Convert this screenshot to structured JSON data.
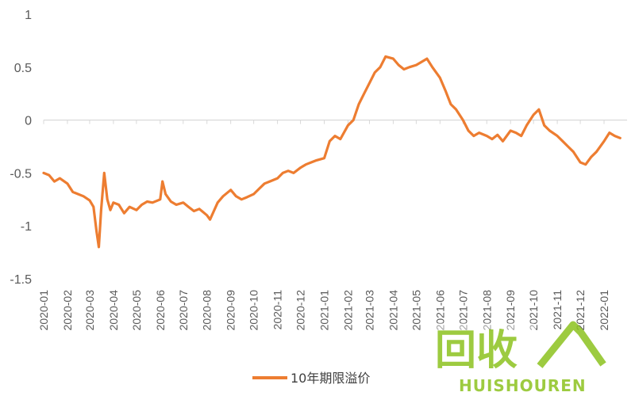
{
  "chart_data": {
    "type": "line",
    "ylim": [
      -1.5,
      1
    ],
    "y_ticks": [
      "1",
      "0.5",
      "0",
      "-0.5",
      "-1",
      "-1.5"
    ],
    "x_ticks": [
      "2020-01",
      "2020-02",
      "2020-03",
      "2020-04",
      "2020-05",
      "2020-06",
      "2020-07",
      "2020-08",
      "2020-09",
      "2020-10",
      "2020-11",
      "2020-12",
      "2021-01",
      "2021-02",
      "2021-03",
      "2021-04",
      "2021-05",
      "2021-06",
      "2021-07",
      "2021-08",
      "2021-09",
      "2021-10",
      "2021-11",
      "2021-12",
      "2022-01"
    ],
    "legend_position": "bottom",
    "colors": {
      "line": "#ED7D31",
      "axis": "#D9D9D9"
    },
    "series": [
      {
        "name": "10年期限溢价",
        "x": [
          "2020-01-01",
          "2020-01-08",
          "2020-01-15",
          "2020-01-22",
          "2020-02-01",
          "2020-02-08",
          "2020-02-15",
          "2020-02-22",
          "2020-03-01",
          "2020-03-06",
          "2020-03-10",
          "2020-03-13",
          "2020-03-16",
          "2020-03-20",
          "2020-03-24",
          "2020-03-28",
          "2020-04-01",
          "2020-04-08",
          "2020-04-15",
          "2020-04-22",
          "2020-05-01",
          "2020-05-08",
          "2020-05-15",
          "2020-05-22",
          "2020-06-01",
          "2020-06-04",
          "2020-06-08",
          "2020-06-15",
          "2020-06-22",
          "2020-07-01",
          "2020-07-08",
          "2020-07-15",
          "2020-07-22",
          "2020-08-01",
          "2020-08-05",
          "2020-08-10",
          "2020-08-15",
          "2020-08-22",
          "2020-09-01",
          "2020-09-08",
          "2020-09-15",
          "2020-09-22",
          "2020-10-01",
          "2020-10-08",
          "2020-10-15",
          "2020-10-22",
          "2020-11-01",
          "2020-11-08",
          "2020-11-15",
          "2020-11-22",
          "2020-12-01",
          "2020-12-08",
          "2020-12-15",
          "2020-12-22",
          "2021-01-01",
          "2021-01-08",
          "2021-01-15",
          "2021-01-22",
          "2021-02-01",
          "2021-02-08",
          "2021-02-15",
          "2021-02-22",
          "2021-03-01",
          "2021-03-08",
          "2021-03-15",
          "2021-03-22",
          "2021-04-01",
          "2021-04-08",
          "2021-04-15",
          "2021-04-22",
          "2021-05-01",
          "2021-05-08",
          "2021-05-15",
          "2021-05-22",
          "2021-06-01",
          "2021-06-08",
          "2021-06-15",
          "2021-06-22",
          "2021-07-01",
          "2021-07-08",
          "2021-07-15",
          "2021-07-22",
          "2021-08-01",
          "2021-08-08",
          "2021-08-15",
          "2021-08-22",
          "2021-09-01",
          "2021-09-08",
          "2021-09-15",
          "2021-09-22",
          "2021-10-01",
          "2021-10-08",
          "2021-10-15",
          "2021-10-22",
          "2021-11-01",
          "2021-11-08",
          "2021-11-15",
          "2021-11-22",
          "2021-12-01",
          "2021-12-08",
          "2021-12-15",
          "2021-12-22",
          "2022-01-01",
          "2022-01-08",
          "2022-01-15",
          "2022-01-22"
        ],
        "values": [
          -0.5,
          -0.52,
          -0.58,
          -0.55,
          -0.6,
          -0.68,
          -0.7,
          -0.72,
          -0.76,
          -0.82,
          -1.05,
          -1.2,
          -0.85,
          -0.5,
          -0.75,
          -0.85,
          -0.78,
          -0.8,
          -0.88,
          -0.82,
          -0.85,
          -0.8,
          -0.77,
          -0.78,
          -0.75,
          -0.58,
          -0.7,
          -0.77,
          -0.8,
          -0.78,
          -0.82,
          -0.86,
          -0.84,
          -0.9,
          -0.94,
          -0.86,
          -0.78,
          -0.72,
          -0.66,
          -0.72,
          -0.75,
          -0.73,
          -0.7,
          -0.65,
          -0.6,
          -0.58,
          -0.55,
          -0.5,
          -0.48,
          -0.5,
          -0.45,
          -0.42,
          -0.4,
          -0.38,
          -0.36,
          -0.2,
          -0.15,
          -0.18,
          -0.05,
          0.0,
          0.15,
          0.25,
          0.35,
          0.45,
          0.5,
          0.6,
          0.58,
          0.52,
          0.48,
          0.5,
          0.52,
          0.55,
          0.58,
          0.5,
          0.4,
          0.28,
          0.15,
          0.1,
          0.0,
          -0.1,
          -0.15,
          -0.12,
          -0.15,
          -0.18,
          -0.14,
          -0.2,
          -0.1,
          -0.12,
          -0.15,
          -0.05,
          0.05,
          0.1,
          -0.05,
          -0.1,
          -0.15,
          -0.2,
          -0.25,
          -0.3,
          -0.4,
          -0.42,
          -0.35,
          -0.3,
          -0.2,
          -0.12,
          -0.15,
          -0.17
        ]
      }
    ]
  },
  "watermark": {
    "text_cn": "回收",
    "text_en": "HUISHOUREN",
    "color": "#8DC21F"
  }
}
